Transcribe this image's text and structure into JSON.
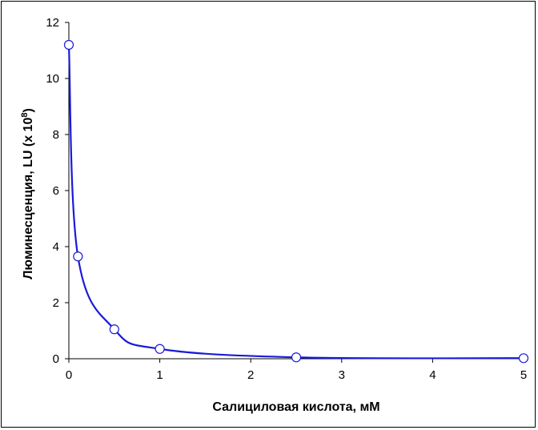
{
  "chart_data": {
    "type": "scatter",
    "title": "",
    "xlabel": "Салициловая кислота, мМ",
    "ylabel": {
      "prefix": "Люминесценция, LU (х 10",
      "superscript": "8",
      "suffix": ")"
    },
    "xlim": [
      0,
      5
    ],
    "ylim": [
      0,
      12
    ],
    "x_ticks": [
      0,
      1,
      2,
      3,
      4,
      5
    ],
    "y_ticks": [
      0,
      2,
      4,
      6,
      8,
      10,
      12
    ],
    "grid": false,
    "legend": "none",
    "series": [
      {
        "color": "#1a1adb",
        "marker": "open-circle",
        "points": [
          {
            "x": 0,
            "y": 11.2
          },
          {
            "x": 0.1,
            "y": 3.65
          },
          {
            "x": 0.5,
            "y": 1.05
          },
          {
            "x": 1,
            "y": 0.35
          },
          {
            "x": 2.5,
            "y": 0.05
          },
          {
            "x": 5,
            "y": 0.02
          }
        ]
      }
    ]
  }
}
